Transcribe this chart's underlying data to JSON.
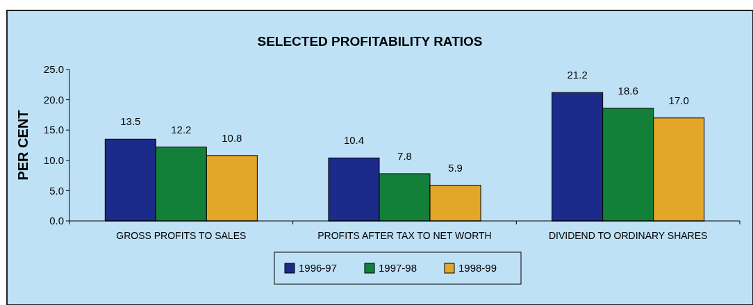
{
  "chart_data": {
    "type": "bar",
    "title": "SELECTED PROFITABILITY RATIOS",
    "ylabel": "PER CENT",
    "categories": [
      "GROSS PROFITS TO SALES",
      "PROFITS AFTER TAX TO NET WORTH",
      "DIVIDEND TO ORDINARY SHARES"
    ],
    "series": [
      {
        "name": "1996-97",
        "color": "#1c2a8a",
        "values": [
          13.5,
          10.4,
          21.2
        ],
        "value_labels": [
          "13.5",
          "10.4",
          "21.2"
        ]
      },
      {
        "name": "1997-98",
        "color": "#13803a",
        "values": [
          12.2,
          7.8,
          18.6
        ],
        "value_labels": [
          "12.2",
          "7.8",
          "18.6"
        ]
      },
      {
        "name": "1998-99",
        "color": "#e3a628",
        "values": [
          10.8,
          5.9,
          17.0
        ],
        "value_labels": [
          "10.8",
          "5.9",
          "17.0"
        ]
      }
    ],
    "ylim": [
      0,
      25
    ],
    "yticks": [
      {
        "value": 0,
        "label": "0.0"
      },
      {
        "value": 5,
        "label": "5.0"
      },
      {
        "value": 10,
        "label": "10.0"
      },
      {
        "value": 15,
        "label": "15.0"
      },
      {
        "value": 20,
        "label": "20.0"
      },
      {
        "value": 25,
        "label": "25.0"
      }
    ],
    "grid": false,
    "legend": "bottom"
  }
}
